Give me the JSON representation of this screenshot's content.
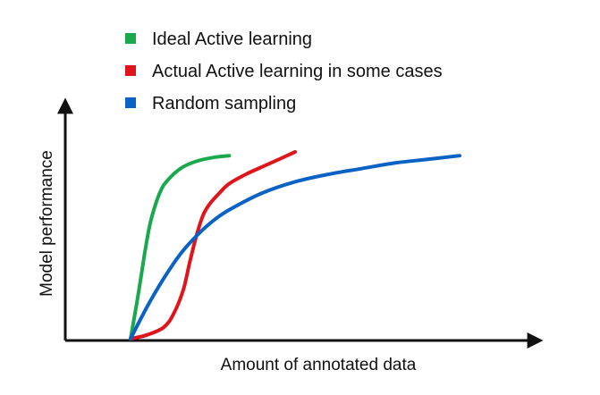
{
  "chart_data": {
    "type": "line",
    "title": "",
    "xlabel": "Amount of annotated data",
    "ylabel": "Model performance",
    "xlim": [
      0,
      100
    ],
    "ylim": [
      0,
      100
    ],
    "grid": false,
    "ticks": false,
    "legend": {
      "placement": "top-center"
    },
    "series": [
      {
        "name": "Ideal Active learning",
        "color": "#1aa84d",
        "x": [
          0,
          1.5,
          3,
          4.5,
          6,
          8,
          10,
          13,
          16,
          20,
          25,
          30
        ],
        "y": [
          0,
          15,
          31,
          48,
          62,
          74,
          82,
          88,
          92,
          95,
          97,
          98
        ]
      },
      {
        "name": "Actual Active learning in some cases",
        "color": "#e0141b",
        "x": [
          0,
          5,
          10,
          13,
          16,
          18,
          20,
          22,
          24,
          27,
          30,
          35,
          40,
          45,
          50
        ],
        "y": [
          0,
          2,
          6,
          13,
          26,
          41,
          55,
          66,
          72,
          78,
          83,
          88,
          92,
          96,
          100
        ]
      },
      {
        "name": "Random sampling",
        "color": "#0a62c4",
        "x": [
          0,
          5,
          10,
          15,
          20,
          25,
          30,
          40,
          50,
          60,
          70,
          80,
          90,
          100
        ],
        "y": [
          0,
          17,
          32,
          45,
          55,
          63,
          69,
          78,
          84,
          88,
          91,
          94,
          96,
          98
        ]
      }
    ]
  }
}
